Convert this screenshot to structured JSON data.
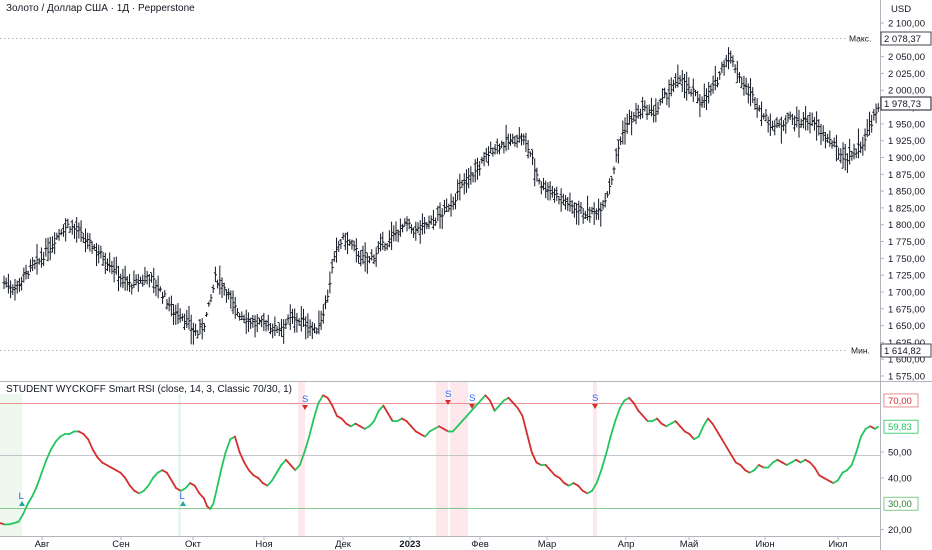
{
  "header": {
    "title": "Золото / Доллар США · 1Д · Pepperstone",
    "currency": "USD"
  },
  "indicator": {
    "title": "STUDENT WYCKOFF Smart RSI (close, 14, 3, Classic 70/30, 1)"
  },
  "colors": {
    "bull": "#22c55e",
    "bear": "#d32f2f",
    "bars": "#131722",
    "grid": "#b2b5be",
    "overbought": "#e57373",
    "oversold": "#66bb6a"
  },
  "chart_data": [
    {
      "type": "ohlc",
      "title": "Золото / Доллар США · 1Д · Pepperstone",
      "unit": "USD",
      "y_ticks": [
        "2 100,00",
        "2 075,00",
        "2 050,00",
        "2 025,00",
        "2 000,00",
        "1 975,00",
        "1 950,00",
        "1 925,00",
        "1 900,00",
        "1 875,00",
        "1 850,00",
        "1 825,00",
        "1 800,00",
        "1 775,00",
        "1 750,00",
        "1 725,00",
        "1 700,00",
        "1 675,00",
        "1 650,00",
        "1 625,00",
        "1 600,00",
        "1 575,00"
      ],
      "ylim": [
        1575,
        2100
      ],
      "x_ticks": [
        "Авг",
        "Сен",
        "Окт",
        "Ноя",
        "Дек",
        "2023",
        "Фев",
        "Мар",
        "Апр",
        "Май",
        "Июн",
        "Июл"
      ],
      "markers": {
        "max_label": "Макс.",
        "max_value": "2 078,37",
        "min_label": "Мин.",
        "min_value": "1 614,82",
        "last_value": "1 978,73"
      },
      "path": [
        [
          0,
          1715
        ],
        [
          8,
          1705
        ],
        [
          16,
          1730
        ],
        [
          24,
          1745
        ],
        [
          32,
          1770
        ],
        [
          38,
          1790
        ],
        [
          44,
          1800
        ],
        [
          50,
          1790
        ],
        [
          56,
          1775
        ],
        [
          62,
          1765
        ],
        [
          68,
          1750
        ],
        [
          74,
          1740
        ],
        [
          80,
          1720
        ],
        [
          86,
          1710
        ],
        [
          92,
          1715
        ],
        [
          98,
          1725
        ],
        [
          104,
          1710
        ],
        [
          110,
          1690
        ],
        [
          116,
          1670
        ],
        [
          122,
          1665
        ],
        [
          128,
          1645
        ],
        [
          132,
          1638
        ],
        [
          136,
          1650
        ],
        [
          140,
          1680
        ],
        [
          144,
          1720
        ],
        [
          148,
          1715
        ],
        [
          152,
          1700
        ],
        [
          156,
          1680
        ],
        [
          160,
          1668
        ],
        [
          166,
          1660
        ],
        [
          172,
          1650
        ],
        [
          178,
          1655
        ],
        [
          184,
          1645
        ],
        [
          190,
          1650
        ],
        [
          196,
          1660
        ],
        [
          202,
          1658
        ],
        [
          208,
          1650
        ],
        [
          212,
          1640
        ],
        [
          216,
          1660
        ],
        [
          220,
          1690
        ],
        [
          224,
          1740
        ],
        [
          228,
          1770
        ],
        [
          232,
          1780
        ],
        [
          236,
          1770
        ],
        [
          240,
          1760
        ],
        [
          244,
          1750
        ],
        [
          248,
          1745
        ],
        [
          252,
          1755
        ],
        [
          256,
          1765
        ],
        [
          262,
          1775
        ],
        [
          268,
          1790
        ],
        [
          274,
          1800
        ],
        [
          280,
          1790
        ],
        [
          286,
          1798
        ],
        [
          292,
          1805
        ],
        [
          298,
          1815
        ],
        [
          304,
          1830
        ],
        [
          310,
          1850
        ],
        [
          316,
          1870
        ],
        [
          322,
          1880
        ],
        [
          328,
          1900
        ],
        [
          334,
          1915
        ],
        [
          340,
          1920
        ],
        [
          346,
          1925
        ],
        [
          352,
          1930
        ],
        [
          358,
          1910
        ],
        [
          362,
          1880
        ],
        [
          366,
          1860
        ],
        [
          370,
          1855
        ],
        [
          376,
          1845
        ],
        [
          382,
          1835
        ],
        [
          388,
          1825
        ],
        [
          394,
          1820
        ],
        [
          400,
          1815
        ],
        [
          406,
          1825
        ],
        [
          410,
          1840
        ],
        [
          414,
          1870
        ],
        [
          418,
          1910
        ],
        [
          422,
          1940
        ],
        [
          426,
          1955
        ],
        [
          430,
          1960
        ],
        [
          434,
          1968
        ],
        [
          438,
          1970
        ],
        [
          442,
          1965
        ],
        [
          446,
          1975
        ],
        [
          450,
          1990
        ],
        [
          454,
          2000
        ],
        [
          458,
          2010
        ],
        [
          462,
          2020
        ],
        [
          466,
          2000
        ],
        [
          470,
          1995
        ],
        [
          474,
          1985
        ],
        [
          478,
          1990
        ],
        [
          482,
          2000
        ],
        [
          486,
          2015
        ],
        [
          490,
          2040
        ],
        [
          494,
          2050
        ],
        [
          498,
          2035
        ],
        [
          502,
          2015
        ],
        [
          506,
          2000
        ],
        [
          510,
          1990
        ],
        [
          514,
          1975
        ],
        [
          518,
          1960
        ],
        [
          522,
          1950
        ],
        [
          526,
          1945
        ],
        [
          530,
          1950
        ],
        [
          534,
          1960
        ],
        [
          538,
          1955
        ],
        [
          542,
          1950
        ],
        [
          546,
          1958
        ],
        [
          550,
          1950
        ],
        [
          554,
          1945
        ],
        [
          558,
          1935
        ],
        [
          562,
          1925
        ],
        [
          566,
          1915
        ],
        [
          570,
          1905
        ],
        [
          574,
          1900
        ],
        [
          578,
          1905
        ],
        [
          582,
          1915
        ],
        [
          586,
          1925
        ],
        [
          590,
          1950
        ],
        [
          594,
          1965
        ],
        [
          596,
          1970
        ]
      ]
    },
    {
      "type": "line",
      "title": "STUDENT WYCKOFF Smart RSI (close, 14, 3, Classic 70/30, 1)",
      "y_ticks": [
        "70,00",
        "59,83",
        "50,00",
        "40,00",
        "30,00",
        "20,00"
      ],
      "levels": [
        70,
        50,
        30
      ],
      "last_value": "59,83",
      "ylim": [
        18,
        80
      ],
      "rsi": [
        [
          0,
          22.5
        ],
        [
          3,
          22
        ],
        [
          6,
          22
        ],
        [
          9,
          22.5
        ],
        [
          12,
          23
        ],
        [
          15,
          26
        ],
        [
          18,
          30
        ],
        [
          21,
          33
        ],
        [
          24,
          37
        ],
        [
          27,
          42
        ],
        [
          30,
          47
        ],
        [
          33,
          51
        ],
        [
          36,
          54
        ],
        [
          39,
          56
        ],
        [
          42,
          57
        ],
        [
          45,
          57
        ],
        [
          48,
          58
        ],
        [
          51,
          58
        ],
        [
          54,
          57
        ],
        [
          57,
          55
        ],
        [
          60,
          51
        ],
        [
          63,
          48
        ],
        [
          66,
          46
        ],
        [
          69,
          45
        ],
        [
          72,
          44
        ],
        [
          75,
          43
        ],
        [
          78,
          42
        ],
        [
          81,
          40
        ],
        [
          84,
          37
        ],
        [
          87,
          35
        ],
        [
          90,
          34
        ],
        [
          93,
          35
        ],
        [
          96,
          37
        ],
        [
          99,
          40
        ],
        [
          102,
          42
        ],
        [
          105,
          43
        ],
        [
          108,
          42
        ],
        [
          111,
          39
        ],
        [
          114,
          36
        ],
        [
          117,
          35
        ],
        [
          120,
          36
        ],
        [
          123,
          38
        ],
        [
          126,
          37
        ],
        [
          129,
          34
        ],
        [
          132,
          32
        ],
        [
          134,
          29
        ],
        [
          136,
          28
        ],
        [
          138,
          30
        ],
        [
          140,
          35
        ],
        [
          143,
          43
        ],
        [
          146,
          50
        ],
        [
          149,
          55
        ],
        [
          152,
          56
        ],
        [
          155,
          50
        ],
        [
          158,
          46
        ],
        [
          161,
          43
        ],
        [
          164,
          41
        ],
        [
          167,
          40
        ],
        [
          170,
          38
        ],
        [
          173,
          37
        ],
        [
          176,
          39
        ],
        [
          179,
          42
        ],
        [
          182,
          45
        ],
        [
          185,
          47
        ],
        [
          188,
          45
        ],
        [
          191,
          43
        ],
        [
          194,
          45
        ],
        [
          197,
          50
        ],
        [
          200,
          56
        ],
        [
          203,
          63
        ],
        [
          206,
          69
        ],
        [
          209,
          72
        ],
        [
          212,
          71
        ],
        [
          215,
          68
        ],
        [
          218,
          64
        ],
        [
          221,
          63
        ],
        [
          224,
          61
        ],
        [
          227,
          60
        ],
        [
          230,
          61
        ],
        [
          233,
          60
        ],
        [
          236,
          59
        ],
        [
          239,
          60
        ],
        [
          242,
          62
        ],
        [
          245,
          66
        ],
        [
          248,
          68
        ],
        [
          251,
          65
        ],
        [
          254,
          62
        ],
        [
          257,
          62
        ],
        [
          260,
          63
        ],
        [
          263,
          62
        ],
        [
          266,
          60
        ],
        [
          269,
          58
        ],
        [
          272,
          57
        ],
        [
          275,
          56
        ],
        [
          278,
          58
        ],
        [
          281,
          59
        ],
        [
          284,
          60
        ],
        [
          287,
          59
        ],
        [
          290,
          58
        ],
        [
          293,
          58
        ],
        [
          296,
          60
        ],
        [
          299,
          62
        ],
        [
          302,
          64
        ],
        [
          305,
          66
        ],
        [
          308,
          68
        ],
        [
          311,
          70
        ],
        [
          314,
          72
        ],
        [
          317,
          70
        ],
        [
          320,
          66
        ],
        [
          323,
          68
        ],
        [
          326,
          70
        ],
        [
          329,
          71
        ],
        [
          332,
          69
        ],
        [
          335,
          67
        ],
        [
          338,
          64
        ],
        [
          341,
          57
        ],
        [
          344,
          50
        ],
        [
          347,
          46
        ],
        [
          350,
          45
        ],
        [
          353,
          45
        ],
        [
          356,
          43
        ],
        [
          359,
          41
        ],
        [
          362,
          40
        ],
        [
          365,
          38
        ],
        [
          368,
          37
        ],
        [
          371,
          38
        ],
        [
          374,
          37
        ],
        [
          377,
          35
        ],
        [
          380,
          34
        ],
        [
          383,
          35
        ],
        [
          386,
          38
        ],
        [
          389,
          43
        ],
        [
          392,
          49
        ],
        [
          395,
          56
        ],
        [
          398,
          62
        ],
        [
          401,
          67
        ],
        [
          404,
          70
        ],
        [
          407,
          71
        ],
        [
          410,
          69
        ],
        [
          413,
          66
        ],
        [
          416,
          64
        ],
        [
          419,
          62
        ],
        [
          422,
          62
        ],
        [
          425,
          63
        ],
        [
          428,
          61
        ],
        [
          431,
          60
        ],
        [
          434,
          61
        ],
        [
          437,
          62
        ],
        [
          440,
          60
        ],
        [
          443,
          58
        ],
        [
          446,
          57
        ],
        [
          449,
          55
        ],
        [
          452,
          56
        ],
        [
          455,
          60
        ],
        [
          458,
          63
        ],
        [
          461,
          61
        ],
        [
          464,
          58
        ],
        [
          467,
          55
        ],
        [
          470,
          52
        ],
        [
          473,
          49
        ],
        [
          476,
          46
        ],
        [
          479,
          45
        ],
        [
          482,
          43
        ],
        [
          485,
          42
        ],
        [
          488,
          43
        ],
        [
          491,
          45
        ],
        [
          494,
          44
        ],
        [
          497,
          44
        ],
        [
          500,
          46
        ],
        [
          503,
          47
        ],
        [
          506,
          46
        ],
        [
          509,
          45
        ],
        [
          512,
          46
        ],
        [
          515,
          47
        ],
        [
          518,
          46
        ],
        [
          521,
          47
        ],
        [
          524,
          46
        ],
        [
          527,
          44
        ],
        [
          530,
          41
        ],
        [
          533,
          40
        ],
        [
          536,
          39
        ],
        [
          539,
          38
        ],
        [
          542,
          39
        ],
        [
          545,
          42
        ],
        [
          548,
          43
        ],
        [
          551,
          45
        ],
        [
          554,
          50
        ],
        [
          557,
          56
        ],
        [
          560,
          59
        ],
        [
          563,
          60
        ],
        [
          566,
          59
        ],
        [
          568,
          59.8
        ]
      ]
    }
  ]
}
